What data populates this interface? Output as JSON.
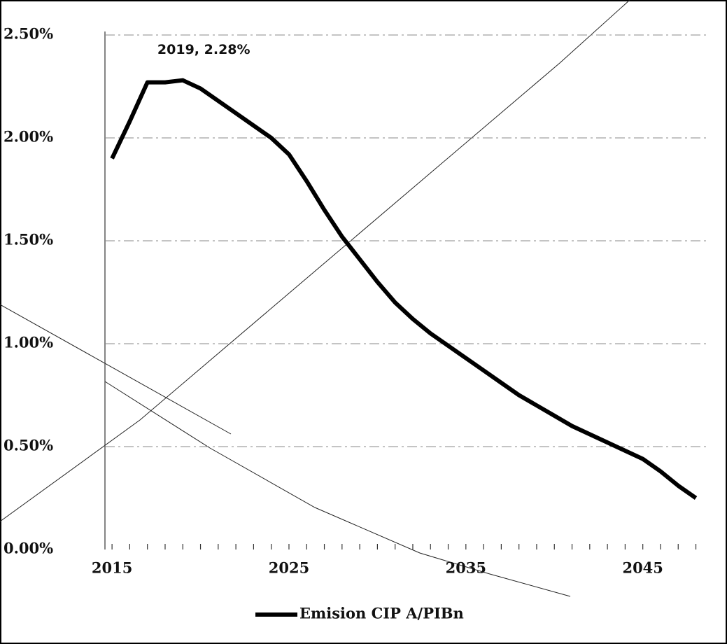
{
  "chart_data": {
    "type": "line",
    "x": [
      2015,
      2016,
      2017,
      2018,
      2019,
      2020,
      2021,
      2022,
      2023,
      2024,
      2025,
      2026,
      2027,
      2028,
      2029,
      2030,
      2031,
      2032,
      2033,
      2034,
      2035,
      2036,
      2037,
      2038,
      2039,
      2040,
      2041,
      2042,
      2043,
      2044,
      2045,
      2046,
      2047,
      2048
    ],
    "series": [
      {
        "name": "Emision CIP A/PIBn",
        "color": "#000000",
        "values": [
          1.9,
          2.08,
          2.27,
          2.27,
          2.28,
          2.24,
          2.18,
          2.12,
          2.06,
          2.0,
          1.92,
          1.79,
          1.65,
          1.52,
          1.41,
          1.3,
          1.2,
          1.12,
          1.05,
          0.99,
          0.93,
          0.87,
          0.81,
          0.75,
          0.7,
          0.65,
          0.6,
          0.56,
          0.52,
          0.48,
          0.44,
          0.38,
          0.31,
          0.25
        ]
      }
    ],
    "xlim": [
      2014.6,
      2049.6
    ],
    "xticks": [
      2015,
      2025,
      2035,
      2045
    ],
    "ylim": [
      0,
      2.5
    ],
    "yticks": [
      {
        "value": 0,
        "label": "0.00%"
      },
      {
        "value": 0.5,
        "label": "0.50%"
      },
      {
        "value": 1,
        "label": "1.00%"
      },
      {
        "value": 1.5,
        "label": "1.50%"
      },
      {
        "value": 2,
        "label": "2.00%"
      },
      {
        "value": 2.5,
        "label": "2.50%"
      }
    ],
    "grid": true,
    "legend": "bottom",
    "annotations": [
      {
        "text": "2019, 2.28%",
        "x": 2019,
        "y": 2.28
      }
    ]
  }
}
